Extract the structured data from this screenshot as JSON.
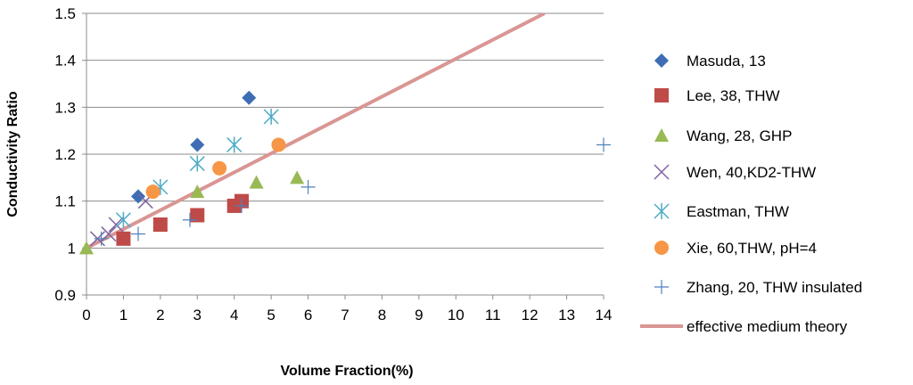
{
  "chart_data": {
    "type": "scatter",
    "xlabel": "Volume Fraction(%)",
    "ylabel": "Conductivity Ratio",
    "xlim": [
      0,
      14
    ],
    "ylim": [
      0.9,
      1.5
    ],
    "x_ticks": [
      "0",
      "1",
      "2",
      "3",
      "4",
      "5",
      "6",
      "7",
      "8",
      "9",
      "10",
      "11",
      "12",
      "13",
      "14"
    ],
    "y_ticks": [
      "0.9",
      "1",
      "1.1",
      "1.2",
      "1.3",
      "1.4",
      "1.5"
    ],
    "y_tick_values": [
      0.9,
      1.0,
      1.1,
      1.2,
      1.3,
      1.4,
      1.5
    ],
    "grid": "horizontal",
    "legend_position": "right",
    "series": [
      {
        "name": "Masuda, 13",
        "marker": "diamond",
        "color": "#3e6db5",
        "points": [
          [
            1.4,
            1.11
          ],
          [
            3.0,
            1.22
          ],
          [
            4.4,
            1.32
          ]
        ]
      },
      {
        "name": "Lee, 38, THW",
        "marker": "square",
        "color": "#be4b48",
        "points": [
          [
            1.0,
            1.02
          ],
          [
            2.0,
            1.05
          ],
          [
            3.0,
            1.07
          ],
          [
            4.0,
            1.09
          ],
          [
            4.2,
            1.1
          ]
        ]
      },
      {
        "name": "Wang, 28, GHP",
        "marker": "triangle",
        "color": "#98b954",
        "points": [
          [
            0.0,
            1.0
          ],
          [
            3.0,
            1.12
          ],
          [
            4.6,
            1.14
          ],
          [
            5.7,
            1.15
          ]
        ]
      },
      {
        "name": "Wen, 40,KD2-THW",
        "marker": "x",
        "color": "#7e649e",
        "points": [
          [
            0.3,
            1.02
          ],
          [
            0.6,
            1.03
          ],
          [
            0.8,
            1.05
          ],
          [
            1.6,
            1.1
          ]
        ]
      },
      {
        "name": "Eastman, THW",
        "marker": "star",
        "color": "#4bacc6",
        "points": [
          [
            1.0,
            1.06
          ],
          [
            2.0,
            1.13
          ],
          [
            3.0,
            1.18
          ],
          [
            4.0,
            1.22
          ],
          [
            5.0,
            1.28
          ]
        ]
      },
      {
        "name": "Xie, 60,THW, pH=4",
        "marker": "circle",
        "color": "#f79646",
        "points": [
          [
            1.8,
            1.12
          ],
          [
            3.6,
            1.17
          ],
          [
            5.2,
            1.22
          ]
        ]
      },
      {
        "name": "Zhang, 20, THW insulated",
        "marker": "plus",
        "color": "#4f81bd",
        "points": [
          [
            0.4,
            1.02
          ],
          [
            1.4,
            1.03
          ],
          [
            2.8,
            1.06
          ],
          [
            4.2,
            1.09
          ],
          [
            6.0,
            1.13
          ],
          [
            14.0,
            1.22
          ]
        ]
      }
    ],
    "line": {
      "name": "effective medium theory",
      "color": "#d99694",
      "points": [
        [
          0.0,
          1.0
        ],
        [
          12.4,
          1.5
        ]
      ]
    }
  }
}
